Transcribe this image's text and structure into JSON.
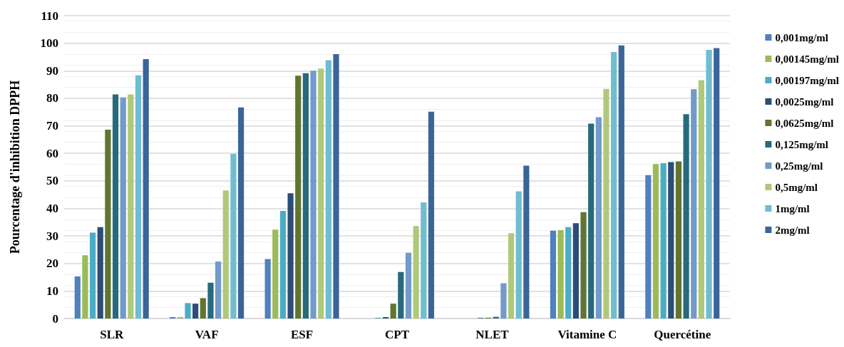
{
  "chart_data": {
    "type": "bar",
    "ylabel": "Pourcentage d'inhibition DPPH",
    "categories": [
      "SLR",
      "VAF",
      "ESF",
      "CPT",
      "NLET",
      "Vitamine C",
      "Quercétine"
    ],
    "series": [
      {
        "name": "0,001mg/ml",
        "color": "#4f81bd",
        "values": [
          15.3,
          0.5,
          21.6,
          0,
          0,
          31.9,
          52.1
        ]
      },
      {
        "name": "0,00145mg/ml",
        "color": "#9bbb59",
        "values": [
          23,
          0.5,
          32.3,
          0,
          0,
          32.1,
          56.1
        ]
      },
      {
        "name": "0,00197mg/ml",
        "color": "#4bacc6",
        "values": [
          31.2,
          5.6,
          39.1,
          0.3,
          0,
          33.2,
          56.4
        ]
      },
      {
        "name": "0,0025mg/ml",
        "color": "#2c4d75",
        "values": [
          33.2,
          5.4,
          45.5,
          0.5,
          0.2,
          34.6,
          56.8
        ]
      },
      {
        "name": "0,0625mg/ml",
        "color": "#5f7530",
        "values": [
          68.6,
          7.4,
          88.2,
          5.4,
          0.3,
          38.6,
          57.1
        ]
      },
      {
        "name": "0,125mg/ml",
        "color": "#276a7c",
        "values": [
          81.4,
          13,
          89.1,
          16.9,
          0.6,
          70.8,
          74.2
        ]
      },
      {
        "name": "0,25mg/ml",
        "color": "#729aca",
        "values": [
          80.3,
          20.7,
          90,
          23.9,
          12.8,
          73.1,
          83.3
        ]
      },
      {
        "name": "0,5mg/ml",
        "color": "#afc97a",
        "values": [
          81.4,
          46.5,
          90.8,
          33.6,
          31,
          83.4,
          86.6
        ]
      },
      {
        "name": "1mg/ml",
        "color": "#6fbdd1",
        "values": [
          88.3,
          59.8,
          93.8,
          42.2,
          46.2,
          96.8,
          97.6
        ]
      },
      {
        "name": "2mg/ml",
        "color": "#3a6599",
        "values": [
          94.2,
          76.7,
          96,
          75.1,
          55.5,
          99.2,
          98.2
        ]
      }
    ],
    "ylim": [
      0,
      110
    ],
    "yticks": [
      0,
      10,
      20,
      30,
      40,
      50,
      60,
      70,
      80,
      90,
      100,
      110
    ],
    "grid": "y",
    "legend": "right"
  }
}
